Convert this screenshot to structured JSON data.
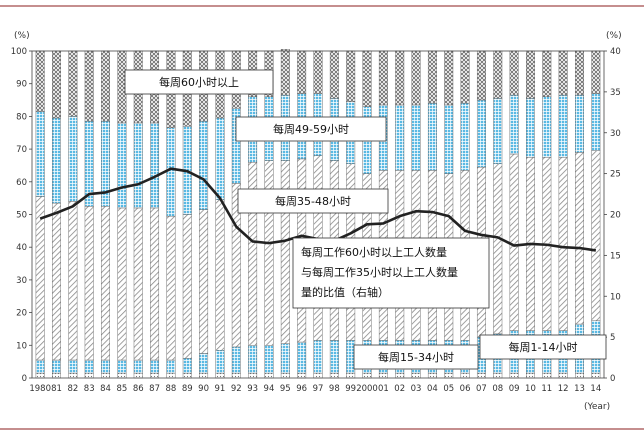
{
  "chart_data": {
    "type": "bar",
    "stacked": true,
    "categories": [
      "1980",
      "81",
      "82",
      "83",
      "84",
      "85",
      "86",
      "87",
      "88",
      "89",
      "90",
      "91",
      "92",
      "93",
      "94",
      "95",
      "96",
      "97",
      "98",
      "99",
      "2000",
      "01",
      "02",
      "03",
      "04",
      "05",
      "06",
      "07",
      "08",
      "09",
      "10",
      "11",
      "12",
      "13",
      "14"
    ],
    "x_unit_label": "(Year)",
    "left_axis": {
      "unit_label": "(%)",
      "ylim": [
        0,
        100
      ],
      "ticks": [
        0,
        10,
        20,
        30,
        40,
        50,
        60,
        70,
        80,
        90,
        100
      ]
    },
    "right_axis": {
      "unit_label": "(%)",
      "ylim": [
        0,
        40
      ],
      "ticks": [
        0,
        5,
        10,
        15,
        20,
        25,
        30,
        35,
        40
      ]
    },
    "series": [
      {
        "name": "每周1-14小时",
        "axis": "left",
        "color": "#ffffff",
        "pattern": "dots",
        "values": [
          1.5,
          1.5,
          1.5,
          1.5,
          1.5,
          1.5,
          1.5,
          1.5,
          1.5,
          1.5,
          1.5,
          1.5,
          1.5,
          1.5,
          1.5,
          1.5,
          1.5,
          1.5,
          1.5,
          1.5,
          1.5,
          1.5,
          1.5,
          1.5,
          1.5,
          1.5,
          1.5,
          1.5,
          1.5,
          1.5,
          1.5,
          1.5,
          1.5,
          1.5,
          1.5
        ]
      },
      {
        "name": "每周15-34小时",
        "axis": "left",
        "color": "#4fb3e0",
        "pattern": "grid",
        "values": [
          4,
          4,
          4,
          4,
          4,
          4,
          4,
          4,
          4,
          4.5,
          6,
          7,
          8,
          8.5,
          8.5,
          9,
          9.5,
          10,
          10,
          10,
          10,
          10,
          10,
          10,
          10,
          10,
          10,
          11,
          12,
          13,
          13,
          13,
          13,
          15,
          16
        ]
      },
      {
        "name": "每周35-48小时",
        "axis": "left",
        "color": "#999999",
        "pattern": "hatch",
        "values": [
          50,
          48,
          48.5,
          47,
          47,
          46.5,
          46.5,
          46.5,
          44,
          44,
          44,
          46,
          50,
          56,
          56.5,
          56,
          56,
          56.5,
          55,
          54,
          51,
          52,
          52,
          52,
          52,
          51,
          52,
          52,
          52,
          54,
          53,
          53,
          53,
          52.5,
          52
        ]
      },
      {
        "name": "每周49-59小时",
        "axis": "left",
        "color": "#4fb3e0",
        "pattern": "grid",
        "values": [
          26,
          26,
          26,
          26,
          26,
          26,
          26,
          26,
          27,
          27,
          27,
          25,
          23,
          20,
          19.5,
          20,
          20,
          19,
          19,
          19,
          20.5,
          20,
          20,
          20,
          20.5,
          21,
          20.5,
          20.5,
          20,
          18,
          18,
          18.5,
          19,
          17.5,
          17.5
        ]
      },
      {
        "name": "每周60小时以上",
        "axis": "left",
        "color": "#cccccc",
        "pattern": "crosshatch",
        "values": [
          18.5,
          20.5,
          20,
          21.5,
          21.5,
          22,
          22,
          22,
          23.5,
          23,
          21.5,
          20.5,
          17.5,
          14,
          14,
          14,
          13,
          13,
          14.5,
          15.5,
          17,
          16.5,
          16.5,
          16.5,
          16,
          16.5,
          16,
          15,
          14.5,
          13.5,
          14.5,
          14,
          13.5,
          13.5,
          13
        ]
      },
      {
        "name": "每周工作60小时以上工人数量与每周工作35小时以上工人数量的比值（右轴）",
        "axis": "right",
        "type": "line",
        "color": "#222222",
        "values": [
          19.5,
          20.2,
          21,
          22.5,
          22.7,
          23.3,
          23.7,
          24.6,
          25.6,
          25.3,
          24.3,
          22,
          18.5,
          16.7,
          16.5,
          16.8,
          17.4,
          17,
          16.8,
          17.7,
          18.8,
          18.9,
          19.8,
          20.4,
          20.3,
          19.8,
          18,
          17.5,
          17.2,
          16.2,
          16.4,
          16.3,
          16,
          15.9,
          15.6
        ]
      }
    ],
    "annotations": [
      {
        "text": "每周60小时以上",
        "series_index": 4
      },
      {
        "text": "每周49-59小时",
        "series_index": 3
      },
      {
        "text": "每周35-48小时",
        "series_index": 2
      },
      {
        "text": "每周工作60小时以上工人数量\n与每周工作35小时以上工人数量\n量的比值（右轴）",
        "series_index": 5
      },
      {
        "text": "每周15-34小时",
        "series_index": 1
      },
      {
        "text": "每周1-14小时",
        "series_index": 0
      }
    ],
    "grid": false,
    "legend": "none"
  }
}
